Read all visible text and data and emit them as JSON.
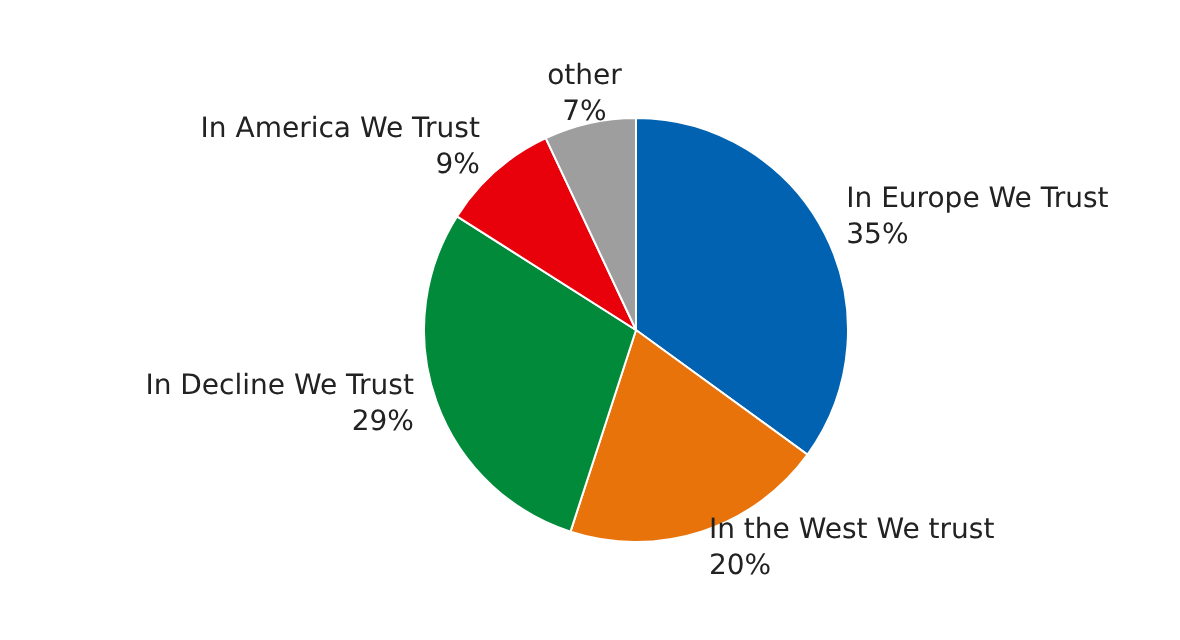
{
  "chart_data": {
    "type": "pie",
    "categories": [
      "In Europe We Trust",
      "In the West We trust",
      "In Decline We Trust",
      "In America We Trust",
      "other"
    ],
    "values": [
      35,
      20,
      29,
      9,
      7
    ],
    "value_labels": [
      "35%",
      "20%",
      "29%",
      "9%",
      "7%"
    ],
    "colors": [
      "#0062b0",
      "#e8730a",
      "#008a3a",
      "#e8000b",
      "#9e9e9e"
    ],
    "legend": false
  }
}
